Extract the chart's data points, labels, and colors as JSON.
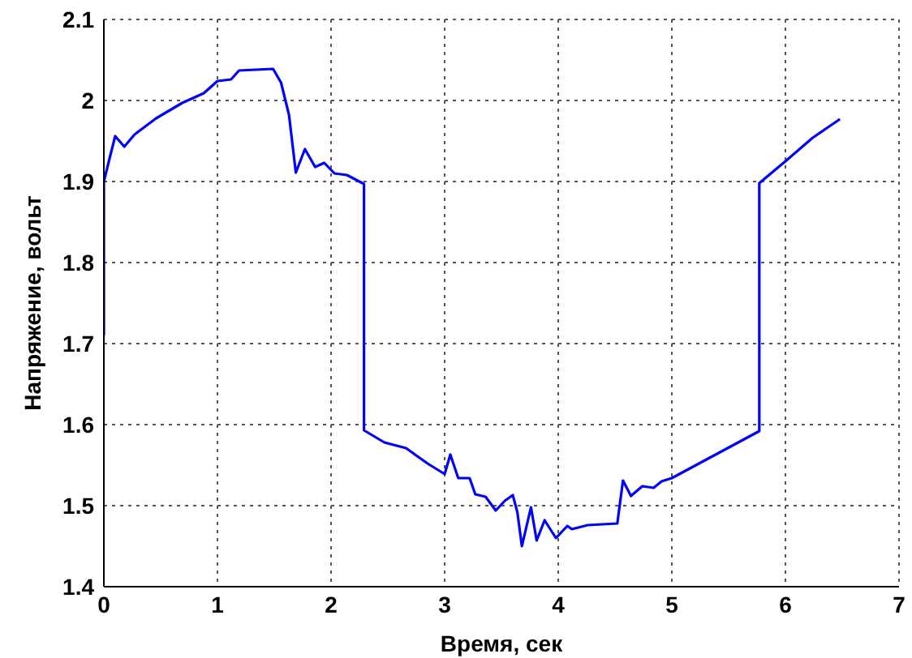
{
  "chart_data": {
    "type": "line",
    "xlabel": "Время, сек",
    "ylabel": "Напряжение, вольт",
    "x": [
      0,
      0,
      0.06,
      0.1,
      0.18,
      0.27,
      0.46,
      0.69,
      0.88,
      1.0,
      1.12,
      1.19,
      1.49,
      1.56,
      1.63,
      1.69,
      1.77,
      1.86,
      1.94,
      2.03,
      2.14,
      2.29,
      2.29,
      2.47,
      2.66,
      2.85,
      3.0,
      3.05,
      3.12,
      3.22,
      3.27,
      3.36,
      3.45,
      3.53,
      3.6,
      3.64,
      3.68,
      3.76,
      3.81,
      3.88,
      3.98,
      4.08,
      4.12,
      4.26,
      4.52,
      4.57,
      4.64,
      4.74,
      4.84,
      4.91,
      5.0,
      5.77,
      5.77,
      6.0,
      6.24,
      6.48
    ],
    "series": [
      {
        "color": "#0000ff",
        "values": [
          1.71,
          1.9,
          1.934,
          1.956,
          1.943,
          1.958,
          1.978,
          1.997,
          2.009,
          2.024,
          2.026,
          2.037,
          2.039,
          2.022,
          1.982,
          1.911,
          1.94,
          1.918,
          1.923,
          1.91,
          1.908,
          1.897,
          1.593,
          1.578,
          1.571,
          1.552,
          1.539,
          1.563,
          1.534,
          1.534,
          1.514,
          1.511,
          1.494,
          1.506,
          1.513,
          1.492,
          1.45,
          1.498,
          1.457,
          1.482,
          1.46,
          1.475,
          1.471,
          1.476,
          1.478,
          1.531,
          1.512,
          1.524,
          1.522,
          1.53,
          1.534,
          1.592,
          1.898,
          1.925,
          1.954,
          1.977
        ]
      }
    ],
    "xlim": [
      0,
      7
    ],
    "xticks": [
      0,
      1,
      2,
      3,
      4,
      5,
      6,
      7
    ],
    "ylim": [
      1.4,
      2.1
    ],
    "yticks": [
      1.4,
      1.5,
      1.6,
      1.7,
      1.8,
      1.9,
      2,
      2.1
    ],
    "grid": true,
    "marker": "none",
    "line_style": "solid"
  }
}
